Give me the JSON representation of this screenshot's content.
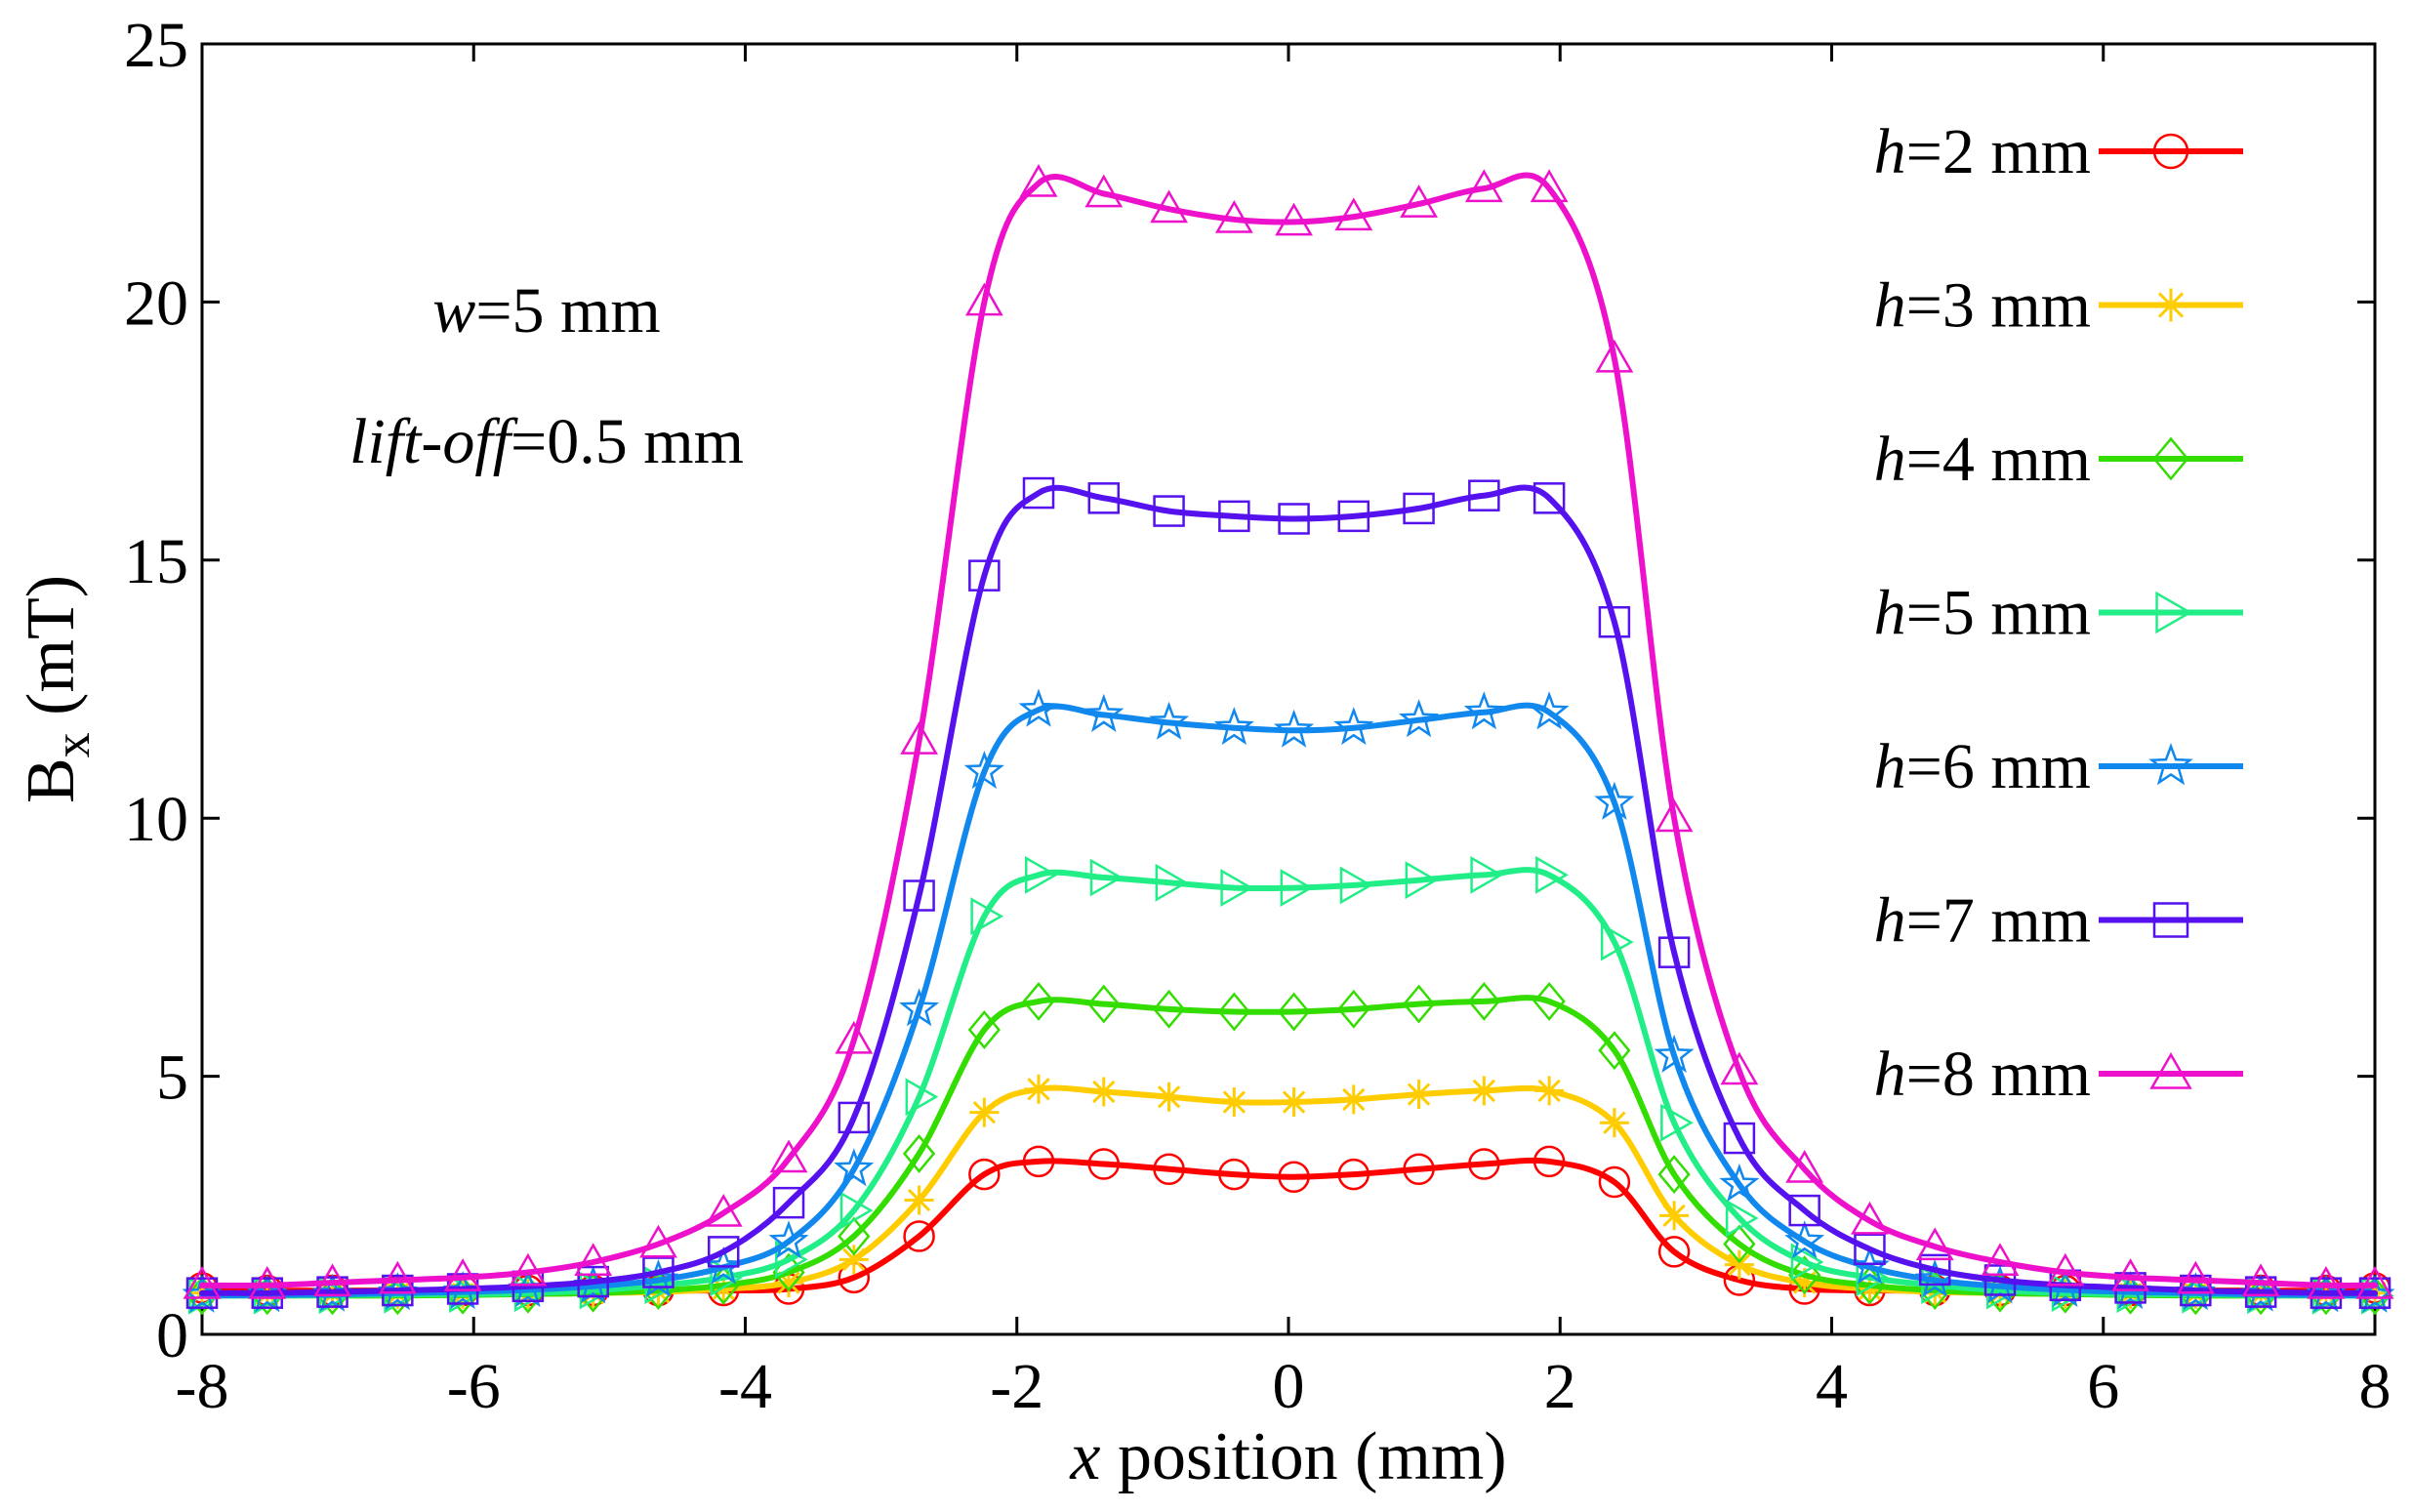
{
  "chart_data": {
    "type": "line",
    "title": "",
    "ylabel": {
      "main": "B",
      "sub": "x",
      "unit": " (mT)"
    },
    "xlabel": {
      "var": "x",
      "rest": " position (mm)"
    },
    "xlim": [
      -8,
      8
    ],
    "ylim": [
      0,
      25
    ],
    "xticks": [
      -8,
      -6,
      -4,
      -2,
      0,
      2,
      4,
      6,
      8
    ],
    "yticks": [
      0,
      5,
      10,
      15,
      20,
      25
    ],
    "annotations": [
      {
        "id": "w",
        "var": "w",
        "text": "=5 mm"
      },
      {
        "id": "liftoff",
        "var": "lift-off",
        "text": "=0.5 mm"
      }
    ],
    "legend_position": "right",
    "x": [
      -8,
      -7.52,
      -7.04,
      -6.56,
      -6.08,
      -5.6,
      -5.12,
      -4.64,
      -4.16,
      -3.68,
      -3.2,
      -2.72,
      -2.24,
      -1.84,
      -1.36,
      -0.88,
      -0.4,
      0.04,
      0.48,
      0.96,
      1.44,
      1.92,
      2.4,
      2.84,
      3.32,
      3.8,
      4.28,
      4.76,
      5.24,
      5.72,
      6.2,
      6.68,
      7.16,
      7.64,
      8
    ],
    "series": [
      {
        "name": "h=2 mm",
        "var": "h",
        "label": "=2 mm",
        "color": "#ff0000",
        "marker": "circle",
        "values": [
          0.9,
          0.85,
          0.85,
          0.85,
          0.85,
          0.85,
          0.85,
          0.85,
          0.85,
          0.88,
          1.1,
          1.9,
          3.1,
          3.35,
          3.3,
          3.2,
          3.1,
          3.05,
          3.1,
          3.2,
          3.3,
          3.35,
          2.95,
          1.6,
          1.05,
          0.88,
          0.85,
          0.85,
          0.85,
          0.85,
          0.85,
          0.85,
          0.85,
          0.85,
          0.9
        ]
      },
      {
        "name": "h=3 mm",
        "var": "h",
        "label": "=3 mm",
        "color": "#ffcc00",
        "marker": "asterisk",
        "values": [
          0.8,
          0.78,
          0.78,
          0.78,
          0.78,
          0.78,
          0.8,
          0.82,
          0.88,
          1.0,
          1.45,
          2.6,
          4.3,
          4.75,
          4.7,
          4.6,
          4.5,
          4.5,
          4.55,
          4.65,
          4.72,
          4.72,
          4.1,
          2.3,
          1.35,
          1.0,
          0.88,
          0.82,
          0.8,
          0.78,
          0.78,
          0.78,
          0.78,
          0.78,
          0.8
        ]
      },
      {
        "name": "h=4 mm",
        "var": "h",
        "label": "=4 mm",
        "color": "#33dd00",
        "marker": "diamond",
        "values": [
          0.75,
          0.75,
          0.75,
          0.75,
          0.76,
          0.78,
          0.8,
          0.85,
          0.95,
          1.2,
          1.9,
          3.5,
          5.9,
          6.45,
          6.4,
          6.3,
          6.25,
          6.25,
          6.3,
          6.4,
          6.45,
          6.45,
          5.5,
          3.1,
          1.75,
          1.15,
          0.95,
          0.85,
          0.8,
          0.78,
          0.76,
          0.75,
          0.75,
          0.75,
          0.75
        ]
      },
      {
        "name": "h=5 mm",
        "var": "h",
        "label": "=5 mm",
        "color": "#22ee88",
        "marker": "triangle-right",
        "values": [
          0.75,
          0.75,
          0.76,
          0.77,
          0.78,
          0.8,
          0.85,
          0.95,
          1.1,
          1.45,
          2.4,
          4.6,
          8.1,
          8.9,
          8.85,
          8.75,
          8.65,
          8.65,
          8.7,
          8.8,
          8.9,
          8.9,
          7.6,
          4.1,
          2.25,
          1.4,
          1.1,
          0.95,
          0.85,
          0.8,
          0.78,
          0.77,
          0.76,
          0.75,
          0.75
        ]
      },
      {
        "name": "h=6 mm",
        "var": "h",
        "label": "=6 mm",
        "color": "#1188ee",
        "marker": "star",
        "values": [
          0.75,
          0.76,
          0.77,
          0.8,
          0.82,
          0.86,
          0.93,
          1.05,
          1.3,
          1.8,
          3.2,
          6.3,
          10.9,
          12.1,
          12.0,
          11.85,
          11.75,
          11.7,
          11.75,
          11.9,
          12.05,
          12.05,
          10.3,
          5.4,
          2.9,
          1.8,
          1.3,
          1.05,
          0.93,
          0.86,
          0.82,
          0.8,
          0.77,
          0.76,
          0.75
        ]
      },
      {
        "name": "h=7 mm",
        "var": "h",
        "label": "=7 mm",
        "color": "#5511ee",
        "marker": "square",
        "values": [
          0.8,
          0.8,
          0.82,
          0.85,
          0.88,
          0.93,
          1.02,
          1.2,
          1.6,
          2.55,
          4.2,
          8.5,
          14.7,
          16.3,
          16.2,
          15.95,
          15.85,
          15.8,
          15.85,
          16.0,
          16.25,
          16.2,
          13.8,
          7.4,
          3.8,
          2.4,
          1.65,
          1.25,
          1.05,
          0.95,
          0.9,
          0.85,
          0.82,
          0.8,
          0.8
        ]
      },
      {
        "name": "h=8 mm",
        "var": "h",
        "label": "=8 mm",
        "color": "#ee11cc",
        "marker": "triangle-up",
        "values": [
          0.95,
          0.95,
          1.0,
          1.05,
          1.1,
          1.2,
          1.4,
          1.75,
          2.35,
          3.4,
          5.7,
          11.5,
          20.0,
          22.3,
          22.1,
          21.8,
          21.6,
          21.55,
          21.65,
          21.9,
          22.2,
          22.2,
          18.9,
          10.0,
          5.1,
          3.2,
          2.2,
          1.7,
          1.4,
          1.2,
          1.1,
          1.05,
          1.0,
          0.95,
          0.95
        ]
      }
    ]
  }
}
